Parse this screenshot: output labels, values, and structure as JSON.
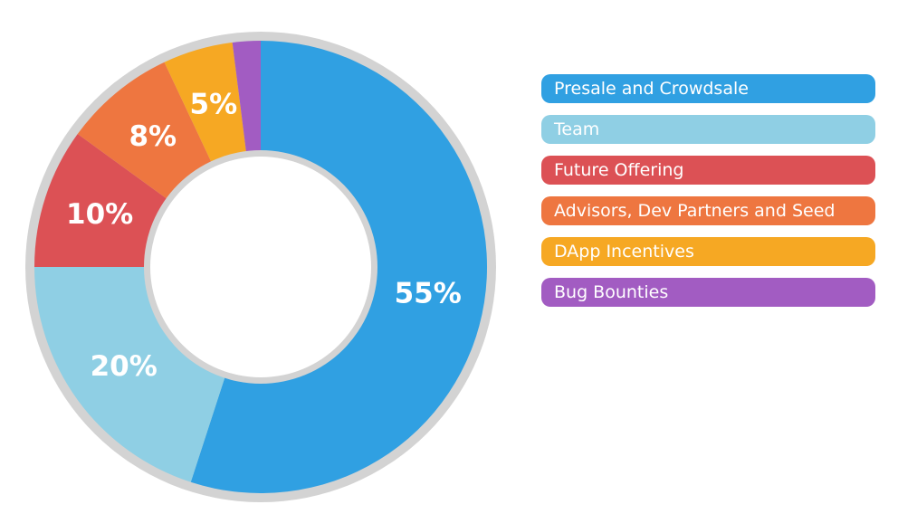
{
  "chart_data": {
    "type": "pie",
    "donut": true,
    "title": "",
    "legend_position": "right",
    "slices": [
      {
        "name": "Presale and Crowdsale",
        "value": 55,
        "label": "55%",
        "color": "#30A0E2"
      },
      {
        "name": "Team",
        "value": 20,
        "label": "20%",
        "color": "#8FCFE4"
      },
      {
        "name": "Future Offering",
        "value": 10,
        "label": "10%",
        "color": "#DC5155"
      },
      {
        "name": "Advisors, Dev Partners and Seed",
        "value": 8,
        "label": "8%",
        "color": "#EE7640"
      },
      {
        "name": "DApp Incentives",
        "value": 5,
        "label": "5%",
        "color": "#F6A823"
      },
      {
        "name": "Bug Bounties",
        "value": 2,
        "label": "",
        "color": "#A25CC2"
      }
    ],
    "ring_color": "#D3D3D3"
  }
}
